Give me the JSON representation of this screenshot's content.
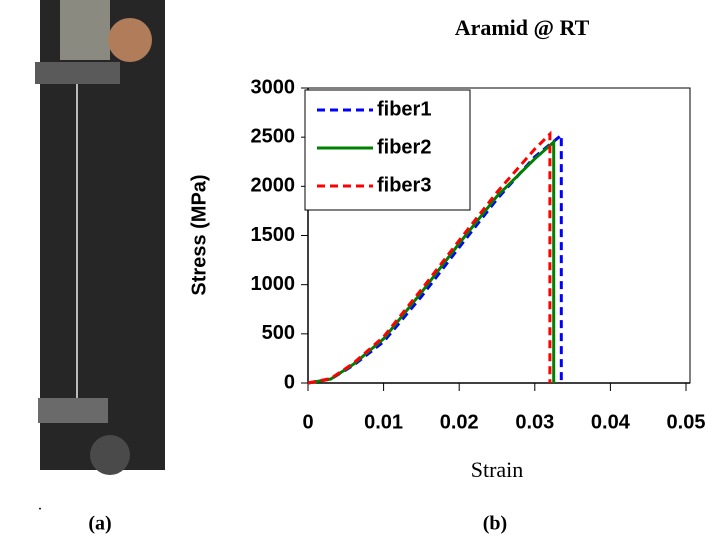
{
  "figure": {
    "dot": ".",
    "label_a": "(a)",
    "label_b": "(b)"
  },
  "chart_data": {
    "type": "line",
    "title": "Aramid @ RT",
    "x_label": "Strain",
    "y_label": "Stress (MPa)",
    "xlim": [
      0,
      0.05
    ],
    "xticks": [
      0,
      0.01,
      0.02,
      0.03,
      0.04,
      0.05
    ],
    "ylim": [
      0,
      3000
    ],
    "yticks": [
      0,
      500,
      1000,
      1500,
      2000,
      2500,
      3000
    ],
    "grid": false,
    "legend": "upper left",
    "series": [
      {
        "name": "fiber1",
        "color": "#0000ff",
        "style": "dashed",
        "x": [
          0,
          0.003,
          0.006,
          0.01,
          0.015,
          0.02,
          0.025,
          0.03,
          0.0335,
          0.0335
        ],
        "values": [
          0,
          40,
          180,
          420,
          880,
          1380,
          1870,
          2300,
          2520,
          0
        ]
      },
      {
        "name": "fiber2",
        "color": "#008000",
        "style": "solid",
        "x": [
          0,
          0.003,
          0.006,
          0.01,
          0.015,
          0.02,
          0.025,
          0.03,
          0.0325,
          0.0325
        ],
        "values": [
          0,
          40,
          190,
          450,
          920,
          1420,
          1900,
          2280,
          2450,
          0
        ]
      },
      {
        "name": "fiber3",
        "color": "#ff0000",
        "style": "dashed",
        "x": [
          0,
          0.003,
          0.006,
          0.01,
          0.015,
          0.02,
          0.025,
          0.03,
          0.032,
          0.032
        ],
        "values": [
          0,
          45,
          200,
          470,
          950,
          1450,
          1940,
          2380,
          2530,
          0
        ]
      }
    ]
  }
}
